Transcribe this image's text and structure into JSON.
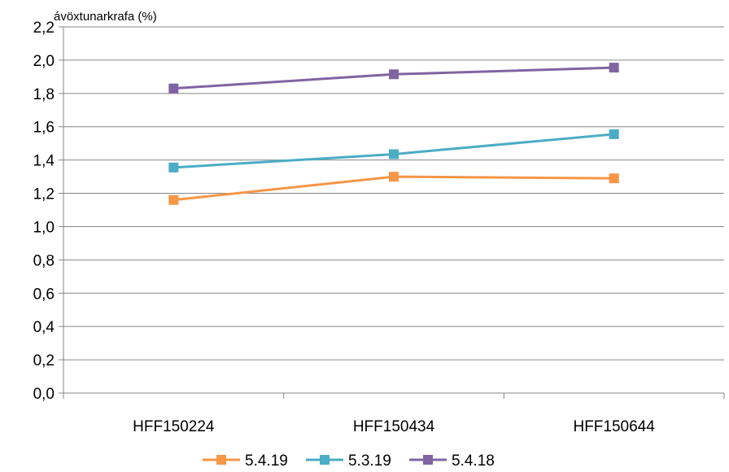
{
  "chart_data": {
    "type": "line",
    "title": "",
    "xlabel": "",
    "ylabel": "ávöxtunarkrafa (%)",
    "categories": [
      "HFF150224",
      "HFF150434",
      "HFF150644"
    ],
    "ylim": [
      0.0,
      2.2
    ],
    "yticks": [
      "0,0",
      "0,2",
      "0,4",
      "0,6",
      "0,8",
      "1,0",
      "1,2",
      "1,4",
      "1,6",
      "1,8",
      "2,0",
      "2,2"
    ],
    "grid": "horizontal",
    "legend": "bottom",
    "series": [
      {
        "name": "5.4.19",
        "color": "#F79646",
        "values": [
          1.16,
          1.3,
          1.29
        ]
      },
      {
        "name": "5.3.19",
        "color": "#4BACC6",
        "values": [
          1.355,
          1.435,
          1.555
        ]
      },
      {
        "name": "5.4.18",
        "color": "#8064A2",
        "values": [
          1.83,
          1.915,
          1.955
        ]
      }
    ]
  }
}
